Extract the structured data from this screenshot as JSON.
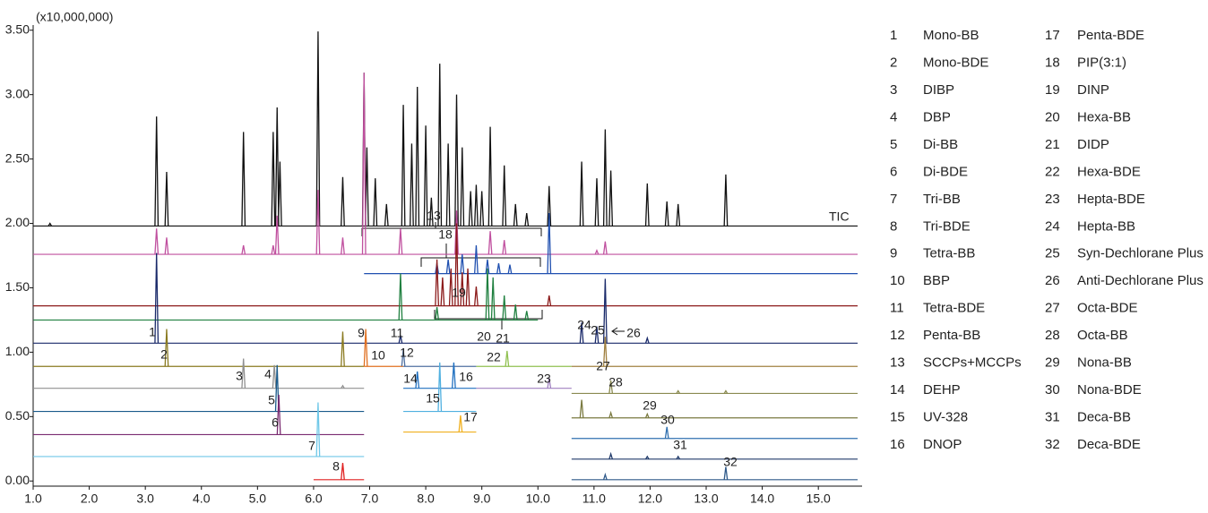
{
  "chart_data": {
    "type": "chromatogram",
    "y_scale_label": "(x10,000,000)",
    "xlim": [
      1.0,
      15.78
    ],
    "ylim": [
      -0.04,
      3.54
    ],
    "xticks": [
      {
        "value": 1,
        "label": "1.0"
      },
      {
        "value": 2,
        "label": "2.0"
      },
      {
        "value": 3,
        "label": "3.0"
      },
      {
        "value": 4,
        "label": "4.0"
      },
      {
        "value": 5,
        "label": "5.0"
      },
      {
        "value": 6,
        "label": "6.0"
      },
      {
        "value": 7,
        "label": "7.0"
      },
      {
        "value": 8,
        "label": "8.0"
      },
      {
        "value": 9,
        "label": "9.0"
      },
      {
        "value": 10,
        "label": "10.0"
      },
      {
        "value": 11,
        "label": "11.0"
      },
      {
        "value": 12,
        "label": "12.0"
      },
      {
        "value": 13,
        "label": "13.0"
      },
      {
        "value": 14,
        "label": "14.0"
      },
      {
        "value": 15,
        "label": "15.0"
      }
    ],
    "yticks": [
      {
        "value": 0,
        "label": "0.00"
      },
      {
        "value": 0.5,
        "label": "0.50"
      },
      {
        "value": 1,
        "label": "1.00"
      },
      {
        "value": 1.5,
        "label": "1.50"
      },
      {
        "value": 2,
        "label": "2.00"
      },
      {
        "value": 2.5,
        "label": "2.50"
      },
      {
        "value": 3,
        "label": "3.00"
      },
      {
        "value": 3.5,
        "label": "3.50"
      }
    ],
    "series": [
      {
        "name": "TIC",
        "color": "#111111",
        "baseline": 1.98,
        "x_range": [
          1.0,
          15.7
        ],
        "x": [
          1.3,
          3.2,
          3.38,
          4.75,
          5.28,
          5.35,
          5.4,
          6.08,
          6.52,
          6.9,
          6.95,
          7.1,
          7.3,
          7.6,
          7.75,
          7.85,
          8.0,
          8.1,
          8.25,
          8.4,
          8.55,
          8.65,
          8.8,
          8.9,
          9.0,
          9.15,
          9.4,
          9.6,
          9.8,
          10.2,
          10.78,
          11.05,
          11.2,
          11.3,
          11.95,
          12.3,
          12.5,
          13.35
        ],
        "values": [
          2.0,
          2.83,
          2.4,
          2.71,
          2.71,
          2.9,
          2.48,
          3.49,
          2.36,
          3.17,
          2.59,
          2.35,
          2.15,
          2.92,
          2.62,
          3.06,
          2.76,
          2.2,
          3.24,
          2.62,
          3.0,
          2.59,
          2.25,
          2.3,
          2.25,
          2.75,
          2.45,
          2.15,
          2.08,
          2.29,
          2.48,
          2.35,
          2.73,
          2.41,
          2.31,
          2.17,
          2.15,
          2.38
        ]
      },
      {
        "color": "#c0509f",
        "baseline": 1.76,
        "x_range": [
          1.0,
          15.7
        ],
        "x": [
          3.2,
          3.38,
          4.75,
          5.28,
          5.35,
          6.08,
          6.52,
          6.9,
          7.55,
          8.55,
          9.15,
          9.4,
          11.05,
          11.2
        ],
        "values": [
          1.96,
          1.89,
          1.83,
          1.83,
          2.06,
          2.26,
          1.89,
          3.17,
          1.96,
          2.1,
          1.94,
          1.87,
          1.79,
          1.86
        ]
      },
      {
        "color": "#2050b0",
        "baseline": 1.61,
        "x_range": [
          6.9,
          15.7
        ],
        "x": [
          8.2,
          8.4,
          8.65,
          8.9,
          9.1,
          9.3,
          9.5,
          10.2
        ],
        "values": [
          1.69,
          1.72,
          1.76,
          1.83,
          1.72,
          1.69,
          1.68,
          2.08
        ]
      },
      {
        "color": "#8b1a1a",
        "baseline": 1.36,
        "x_range": [
          1.0,
          15.7
        ],
        "x": [
          8.2,
          8.3,
          8.45,
          8.55,
          8.65,
          8.75,
          8.9,
          10.2
        ],
        "values": [
          1.72,
          1.58,
          1.65,
          2.0,
          1.62,
          1.65,
          1.51,
          1.44
        ]
      },
      {
        "color": "#208040",
        "baseline": 1.25,
        "x_range": [
          1.0,
          10.0
        ],
        "x": [
          7.55,
          8.2,
          9.1,
          9.2,
          9.4,
          9.6,
          9.8
        ],
        "values": [
          1.61,
          1.35,
          1.65,
          1.58,
          1.44,
          1.37,
          1.32
        ]
      },
      {
        "color": "#1a2a6a",
        "baseline": 1.07,
        "x_range": [
          1.0,
          15.7
        ],
        "x": [
          3.2,
          7.55,
          10.78,
          11.05,
          11.2,
          11.95
        ],
        "values": [
          1.77,
          1.13,
          1.23,
          1.2,
          1.57,
          1.11
        ]
      },
      {
        "color": "#8a7a20",
        "baseline": 0.89,
        "x_range": [
          1.0,
          6.9
        ],
        "x": [
          3.38,
          6.52
        ],
        "values": [
          1.18,
          1.16
        ]
      },
      {
        "color": "#e07020",
        "baseline": 0.89,
        "x_range": [
          6.9,
          7.6
        ],
        "x": [
          6.93
        ],
        "values": [
          1.18
        ]
      },
      {
        "color": "#5070a0",
        "baseline": 0.89,
        "x_range": [
          7.6,
          8.9
        ],
        "x": [
          7.6
        ],
        "values": [
          1.02
        ]
      },
      {
        "color": "#90c050",
        "baseline": 0.89,
        "x_range": [
          8.9,
          10.6
        ],
        "x": [
          9.45
        ],
        "values": [
          1.01
        ]
      },
      {
        "color": "#a08040",
        "baseline": 0.89,
        "x_range": [
          10.6,
          15.7
        ],
        "x": [
          11.2
        ],
        "values": [
          1.12
        ]
      },
      {
        "color": "#909090",
        "baseline": 0.72,
        "x_range": [
          1.0,
          6.9
        ],
        "x": [
          4.75,
          5.3,
          6.52
        ],
        "values": [
          0.95,
          0.9,
          0.74
        ]
      },
      {
        "color": "#2070c0",
        "baseline": 0.72,
        "x_range": [
          7.6,
          8.9
        ],
        "x": [
          7.85,
          8.5
        ],
        "values": [
          0.85,
          0.92
        ]
      },
      {
        "color": "#a080c0",
        "baseline": 0.72,
        "x_range": [
          8.9,
          10.6
        ],
        "x": [
          10.2
        ],
        "values": [
          0.8
        ]
      },
      {
        "color": "#8a8a50",
        "baseline": 0.68,
        "x_range": [
          10.6,
          15.7
        ],
        "x": [
          11.3,
          12.5,
          13.35
        ],
        "values": [
          0.78,
          0.7,
          0.7
        ]
      },
      {
        "color": "#1a5a8a",
        "baseline": 0.54,
        "x_range": [
          1.0,
          6.9
        ],
        "x": [
          5.35
        ],
        "values": [
          0.9
        ]
      },
      {
        "color": "#50b0e0",
        "baseline": 0.54,
        "x_range": [
          7.6,
          8.9
        ],
        "x": [
          8.25
        ],
        "values": [
          0.92
        ]
      },
      {
        "color": "#7a7a40",
        "baseline": 0.49,
        "x_range": [
          10.6,
          15.7
        ],
        "x": [
          10.78,
          11.3,
          11.95
        ],
        "values": [
          0.63,
          0.53,
          0.52
        ]
      },
      {
        "color": "#7a2a70",
        "baseline": 0.36,
        "x_range": [
          1.0,
          6.9
        ],
        "x": [
          5.38
        ],
        "values": [
          0.67
        ]
      },
      {
        "color": "#f0b020",
        "baseline": 0.38,
        "x_range": [
          7.6,
          8.9
        ],
        "x": [
          8.62
        ],
        "values": [
          0.51
        ]
      },
      {
        "color": "#3070b0",
        "baseline": 0.33,
        "x_range": [
          10.6,
          15.7
        ],
        "x": [
          12.3
        ],
        "values": [
          0.42
        ]
      },
      {
        "color": "#70c8e8",
        "baseline": 0.19,
        "x_range": [
          1.0,
          6.9
        ],
        "x": [
          6.08
        ],
        "values": [
          0.61
        ]
      },
      {
        "color": "#203a6a",
        "baseline": 0.17,
        "x_range": [
          10.6,
          15.7
        ],
        "x": [
          11.3,
          11.95,
          12.5
        ],
        "values": [
          0.21,
          0.19,
          0.19
        ]
      },
      {
        "color": "#e02020",
        "baseline": 0.01,
        "x_range": [
          6.0,
          6.9
        ],
        "x": [
          6.52
        ],
        "values": [
          0.14
        ]
      },
      {
        "color": "#305a8a",
        "baseline": 0.01,
        "x_range": [
          10.6,
          15.7
        ],
        "x": [
          11.2,
          13.35
        ],
        "values": [
          0.05,
          0.11
        ]
      }
    ],
    "peak_labels": [
      "1",
      "2",
      "3",
      "4",
      "5",
      "6",
      "7",
      "8",
      "9",
      "10",
      "11",
      "12",
      "13",
      "14",
      "15",
      "16",
      "17",
      "18",
      "19",
      "20",
      "21",
      "22",
      "23",
      "24",
      "25",
      "26",
      "27",
      "28",
      "29",
      "30",
      "31",
      "32"
    ],
    "compounds": [
      {
        "no": "1",
        "name": "Mono-BB"
      },
      {
        "no": "2",
        "name": "Mono-BDE"
      },
      {
        "no": "3",
        "name": "DIBP"
      },
      {
        "no": "4",
        "name": "DBP"
      },
      {
        "no": "5",
        "name": "Di-BB"
      },
      {
        "no": "6",
        "name": "Di-BDE"
      },
      {
        "no": "7",
        "name": "Tri-BB"
      },
      {
        "no": "8",
        "name": "Tri-BDE"
      },
      {
        "no": "9",
        "name": "Tetra-BB"
      },
      {
        "no": "10",
        "name": "BBP"
      },
      {
        "no": "11",
        "name": "Tetra-BDE"
      },
      {
        "no": "12",
        "name": "Penta-BB"
      },
      {
        "no": "13",
        "name": "SCCPs+MCCPs"
      },
      {
        "no": "14",
        "name": "DEHP"
      },
      {
        "no": "15",
        "name": "UV-328"
      },
      {
        "no": "16",
        "name": "DNOP"
      },
      {
        "no": "17",
        "name": "Penta-BDE"
      },
      {
        "no": "18",
        "name": "PIP(3:1)"
      },
      {
        "no": "19",
        "name": "DINP"
      },
      {
        "no": "20",
        "name": "Hexa-BB"
      },
      {
        "no": "21",
        "name": "DIDP"
      },
      {
        "no": "22",
        "name": "Hexa-BDE"
      },
      {
        "no": "23",
        "name": "Hepta-BDE"
      },
      {
        "no": "24",
        "name": "Hepta-BB"
      },
      {
        "no": "25",
        "name": "Syn-Dechlorane Plus"
      },
      {
        "no": "26",
        "name": "Anti-Dechlorane Plus"
      },
      {
        "no": "27",
        "name": "Octa-BDE"
      },
      {
        "no": "28",
        "name": "Octa-BB"
      },
      {
        "no": "29",
        "name": "Nona-BB"
      },
      {
        "no": "30",
        "name": "Nona-BDE"
      },
      {
        "no": "31",
        "name": "Deca-BB"
      },
      {
        "no": "32",
        "name": "Deca-BDE"
      }
    ]
  }
}
